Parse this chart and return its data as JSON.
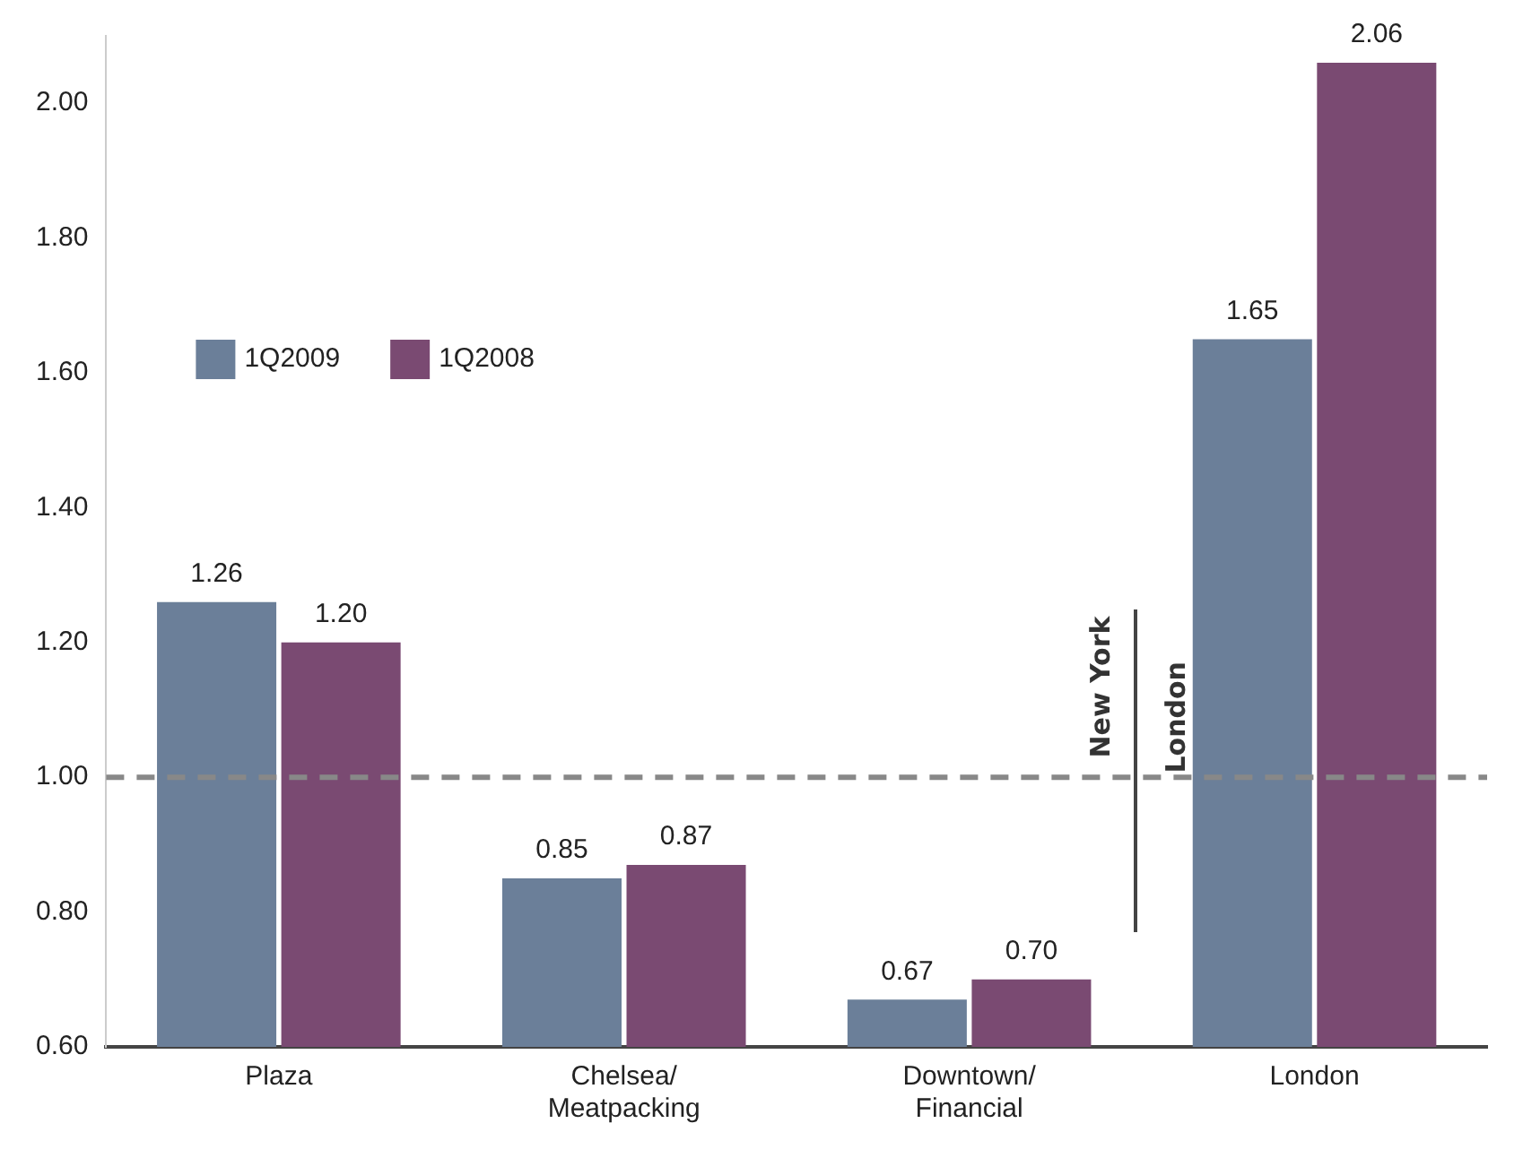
{
  "chart_data": {
    "type": "bar",
    "categories": [
      "Plaza",
      "Chelsea/\nMeatpacking",
      "Downtown/\nFinancial",
      "London"
    ],
    "series": [
      {
        "name": "1Q2009",
        "color": "#6b7f99",
        "values": [
          1.26,
          0.85,
          0.67,
          1.65
        ],
        "value_labels": [
          "1.26",
          "0.85",
          "0.67",
          "1.65"
        ]
      },
      {
        "name": "1Q2008",
        "color": "#7a4a72",
        "values": [
          1.2,
          0.87,
          0.7,
          2.06
        ],
        "value_labels": [
          "1.20",
          "0.87",
          "0.70",
          "2.06"
        ]
      }
    ],
    "ylim": [
      0.6,
      2.1
    ],
    "yticks": [
      {
        "value": 0.6,
        "label": "0.60"
      },
      {
        "value": 0.8,
        "label": "0.80"
      },
      {
        "value": 1.0,
        "label": "1.00"
      },
      {
        "value": 1.2,
        "label": "1.20"
      },
      {
        "value": 1.4,
        "label": "1.40"
      },
      {
        "value": 1.6,
        "label": "1.60"
      },
      {
        "value": 1.8,
        "label": "1.80"
      },
      {
        "value": 2.0,
        "label": "2.00"
      }
    ],
    "ref_lines": [
      {
        "axis": "y",
        "value": 1.0,
        "color": "#888888",
        "line_style": "dashed"
      }
    ],
    "annotations": [
      "New York",
      "London"
    ],
    "grid": false,
    "legend": "top left"
  }
}
